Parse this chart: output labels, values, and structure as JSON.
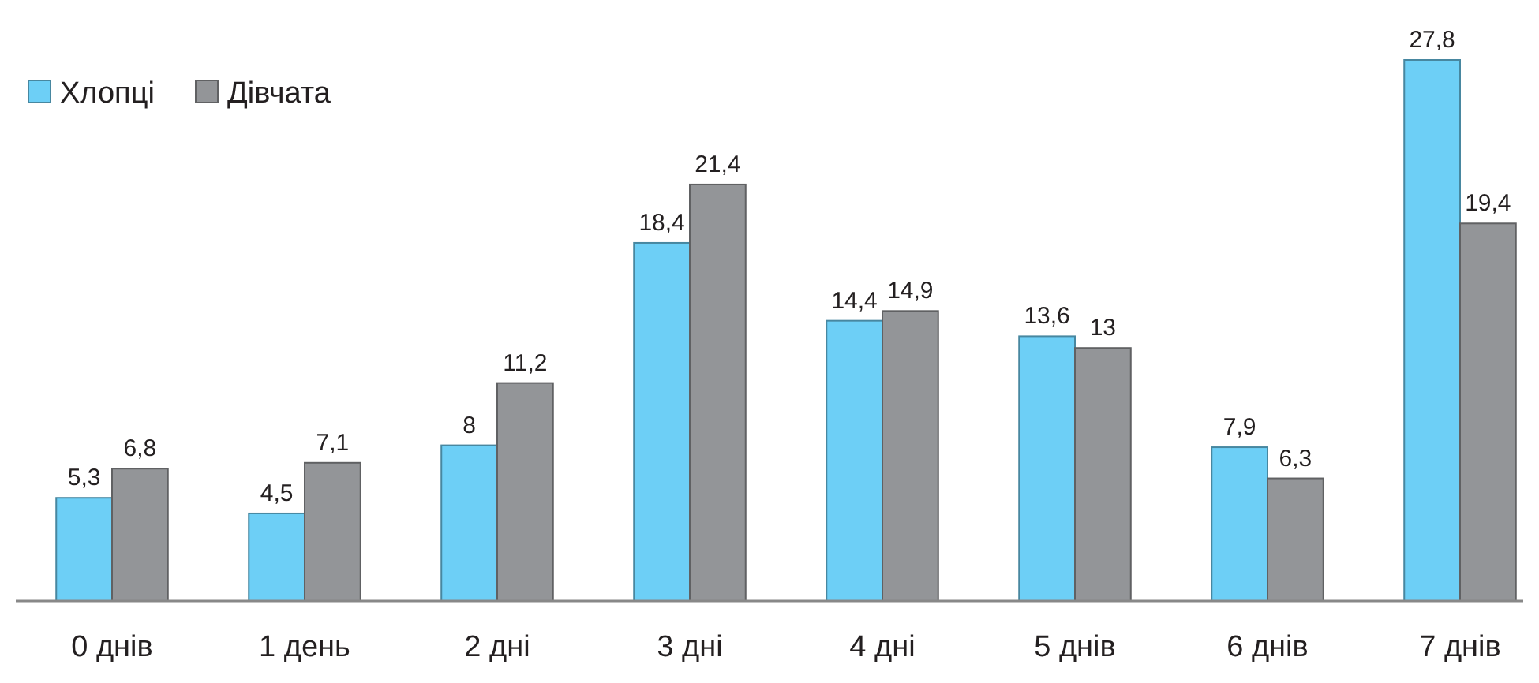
{
  "chart_data": {
    "type": "bar",
    "categories": [
      "0 днів",
      "1 день",
      "2 дні",
      "3 дні",
      "4 дні",
      "5 днів",
      "6 днів",
      "7 днів"
    ],
    "series": [
      {
        "name": "Хлопці",
        "color": "#6dcff6",
        "values": [
          5.3,
          4.5,
          8,
          18.4,
          14.4,
          13.6,
          7.9,
          27.8
        ],
        "value_labels": [
          "5,3",
          "4,5",
          "8",
          "18,4",
          "14,4",
          "13,6",
          "7,9",
          "27,8"
        ]
      },
      {
        "name": "Дівчата",
        "color": "#939598",
        "values": [
          6.8,
          7.1,
          11.2,
          21.4,
          14.9,
          13,
          6.3,
          19.4
        ],
        "value_labels": [
          "6,8",
          "7,1",
          "11,2",
          "21,4",
          "14,9",
          "13",
          "6,3",
          "19,4"
        ]
      }
    ],
    "ylim": [
      0,
      27.8
    ],
    "tick_labels": "x",
    "legend": "top left"
  }
}
